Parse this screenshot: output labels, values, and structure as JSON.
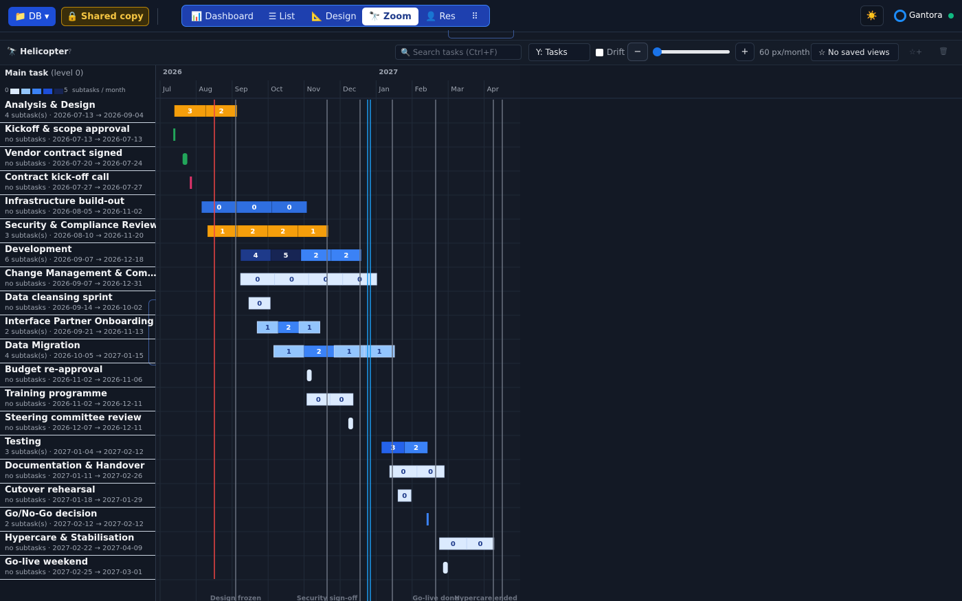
{
  "toolbar": {
    "db": "📁 DB ▾",
    "shared": "🔒 Shared copy",
    "tabs": [
      "📊 Dashboard",
      "☰ List",
      "📐 Design",
      "🔭 Zoom",
      "👤 Res",
      "⠿"
    ],
    "theme": "☀️",
    "brand": "Gantora"
  },
  "controls": {
    "view": "🔭 Helicopter",
    "help": "?",
    "search_placeholder": "🔍 Search tasks (Ctrl+F)",
    "y_axis": "Y: Tasks",
    "drift": "Drift",
    "zoom_out": "−",
    "zoom_in": "+",
    "scale": "60 px/month",
    "saved_views": "☆ No saved views",
    "save_view": "☆+",
    "delete": "🗑"
  },
  "header": {
    "title": "Main task",
    "level": "(level 0)",
    "legend_min": "0",
    "legend_max": "5",
    "legend_unit": "subtasks / month"
  },
  "timeline": {
    "years": [
      "2026",
      "2027"
    ],
    "months": [
      "Jul",
      "Aug",
      "Sep",
      "Oct",
      "Nov",
      "Dec",
      "Jan",
      "Feb",
      "Mar",
      "Apr"
    ]
  },
  "tasks": [
    {
      "name": "Analysis & Design",
      "meta": "4 subtask(s) · 2026-07-13 → 2026-09-04",
      "segments": [
        3,
        2
      ],
      "colors": [
        "#f59e0b",
        "#f59e0b"
      ]
    },
    {
      "name": "Kickoff & scope approval",
      "meta": "no subtasks · 2026-07-13 → 2026-07-13",
      "segments": [],
      "colors": [
        "#22a55a"
      ]
    },
    {
      "name": "Vendor contract signed",
      "meta": "no subtasks · 2026-07-20 → 2026-07-24",
      "segments": [],
      "colors": [
        "#22a55a"
      ]
    },
    {
      "name": "Contract kick-off call",
      "meta": "no subtasks · 2026-07-27 → 2026-07-27",
      "segments": [],
      "colors": [
        "#e0336b"
      ]
    },
    {
      "name": "Infrastructure build-out",
      "meta": "no subtasks · 2026-08-05 → 2026-11-02",
      "segments": [
        0,
        0,
        0
      ],
      "colors": [
        "#2f6fe0",
        "#2f6fe0",
        "#2f6fe0"
      ]
    },
    {
      "name": "Security & Compliance Review",
      "meta": "3 subtask(s) · 2026-08-10 → 2026-11-20",
      "segments": [
        1,
        2,
        2,
        1
      ],
      "colors": [
        "#f59e0b",
        "#f59e0b",
        "#f59e0b",
        "#f59e0b"
      ]
    },
    {
      "name": "Development",
      "meta": "6 subtask(s) · 2026-09-07 → 2026-12-18",
      "segments": [
        4,
        5,
        2,
        2
      ],
      "colors": [
        "#1e3a8a",
        "#172554",
        "#3b82f6",
        "#3b82f6"
      ]
    },
    {
      "name": "Change Management & Com…",
      "meta": "no subtasks · 2026-09-07 → 2026-12-31",
      "segments": [
        0,
        0,
        0,
        0
      ],
      "colors": [
        "#dbeafe",
        "#dbeafe",
        "#dbeafe",
        "#dbeafe"
      ]
    },
    {
      "name": "Data cleansing sprint",
      "meta": "no subtasks · 2026-09-14 → 2026-10-02",
      "segments": [
        0
      ],
      "colors": [
        "#dbeafe"
      ]
    },
    {
      "name": "Interface Partner Onboarding",
      "meta": "2 subtask(s) · 2026-09-21 → 2026-11-13",
      "segments": [
        1,
        2,
        1
      ],
      "colors": [
        "#93c5fd",
        "#3b82f6",
        "#93c5fd"
      ]
    },
    {
      "name": "Data Migration",
      "meta": "4 subtask(s) · 2026-10-05 → 2027-01-15",
      "segments": [
        1,
        2,
        1,
        1
      ],
      "colors": [
        "#93c5fd",
        "#3b82f6",
        "#93c5fd",
        "#93c5fd"
      ]
    },
    {
      "name": "Budget re-approval",
      "meta": "no subtasks · 2026-11-02 → 2026-11-06",
      "segments": [],
      "colors": [
        "#dbeafe"
      ]
    },
    {
      "name": "Training programme",
      "meta": "no subtasks · 2026-11-02 → 2026-12-11",
      "segments": [
        0,
        0
      ],
      "colors": [
        "#dbeafe",
        "#dbeafe"
      ]
    },
    {
      "name": "Steering committee review",
      "meta": "no subtasks · 2026-12-07 → 2026-12-11",
      "segments": [],
      "colors": [
        "#dbeafe"
      ]
    },
    {
      "name": "Testing",
      "meta": "3 subtask(s) · 2027-01-04 → 2027-02-12",
      "segments": [
        3,
        2
      ],
      "colors": [
        "#2563eb",
        "#3b82f6"
      ]
    },
    {
      "name": "Documentation & Handover",
      "meta": "no subtasks · 2027-01-11 → 2027-02-26",
      "segments": [
        0,
        0
      ],
      "colors": [
        "#dbeafe",
        "#dbeafe"
      ]
    },
    {
      "name": "Cutover rehearsal",
      "meta": "no subtasks · 2027-01-18 → 2027-01-29",
      "segments": [
        0
      ],
      "colors": [
        "#dbeafe"
      ]
    },
    {
      "name": "Go/No-Go decision",
      "meta": "2 subtask(s) · 2027-02-12 → 2027-02-12",
      "segments": [],
      "colors": [
        "#3b82f6"
      ]
    },
    {
      "name": "Hypercare & Stabilisation",
      "meta": "no subtasks · 2027-02-22 → 2027-04-09",
      "segments": [
        0,
        0
      ],
      "colors": [
        "#dbeafe",
        "#dbeafe"
      ]
    },
    {
      "name": "Go-live weekend",
      "meta": "no subtasks · 2027-02-25 → 2027-03-01",
      "segments": [],
      "colors": [
        "#dbeafe"
      ]
    }
  ],
  "milestones": [
    "Design frozen",
    "Security sign-off",
    "Go-live done",
    "Hypercare ended"
  ]
}
